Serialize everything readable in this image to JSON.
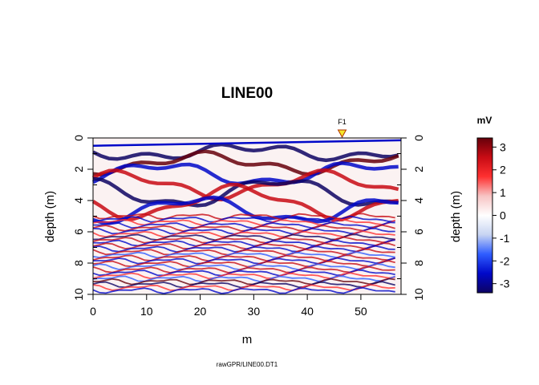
{
  "chart_data": {
    "type": "heatmap",
    "title": "LINE00",
    "xlabel": "m",
    "ylabel_left": "depth (m)",
    "ylabel_right": "depth (m)",
    "x_ticks": [
      0,
      10,
      20,
      30,
      40,
      50
    ],
    "x_tick_labels": [
      "0",
      "10",
      "20",
      "30",
      "40",
      "50"
    ],
    "xlim": [
      0,
      57.5
    ],
    "y_ticks": [
      0,
      2,
      4,
      6,
      8,
      10
    ],
    "y_tick_labels": [
      "0",
      "2",
      "4",
      "6",
      "8",
      "10"
    ],
    "ylim": [
      0,
      10
    ],
    "y_reversed": true,
    "grid": false,
    "marker": {
      "label": "F1",
      "x": 46.5,
      "color": "#f5e62a"
    },
    "colorbar": {
      "title": "mV",
      "range": [
        -3.4,
        3.4
      ],
      "ticks": [
        3,
        2,
        1,
        0,
        -1,
        -2,
        -3
      ],
      "tick_labels": [
        "3",
        "2",
        "1",
        "0",
        "-1",
        "-2",
        "-3"
      ],
      "colors": [
        "#0d0363",
        "#0008c9",
        "#2f5dff",
        "#c7d4f2",
        "#ffffff",
        "#f7c4c4",
        "#ff3030",
        "#c80b14",
        "#66000a"
      ],
      "placement": "right"
    },
    "caption": "rawGPR/LINE00.DT1"
  }
}
